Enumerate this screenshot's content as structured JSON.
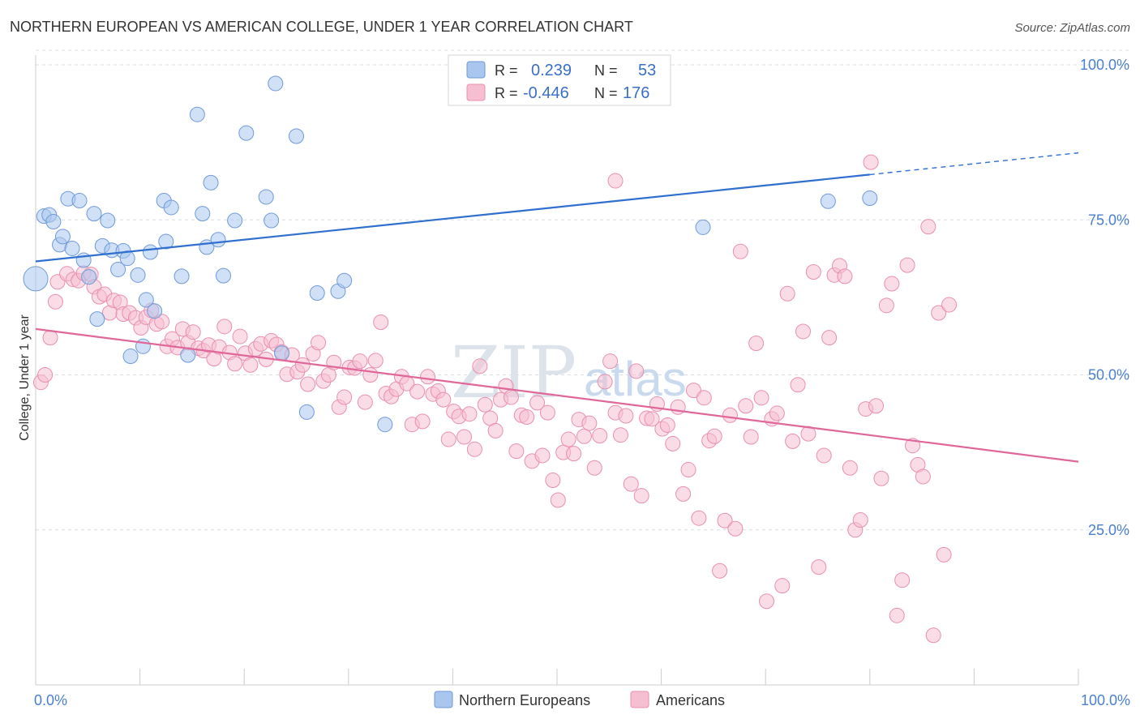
{
  "title": "NORTHERN EUROPEAN VS AMERICAN COLLEGE, UNDER 1 YEAR CORRELATION CHART",
  "source": "Source: ZipAtlas.com",
  "watermark": {
    "zip": "ZIP",
    "atlas": "atlas"
  },
  "colors": {
    "blue_fill": "#a9c6ee",
    "blue_stroke": "#6f9ad8",
    "blue_line": "#2f6fcf",
    "pink_fill": "#f6bfd1",
    "pink_stroke": "#e98fae",
    "pink_line": "#e0679a",
    "grid": "#d8dde3",
    "tick_text": "#4a7fd0"
  },
  "chart_data": {
    "type": "scatter",
    "xlabel": "",
    "ylabel": "College, Under 1 year",
    "xlim": [
      0,
      100
    ],
    "ylim": [
      0,
      100
    ],
    "x_tick_labels": [
      "0.0%",
      "100.0%"
    ],
    "y_tick_labels": [
      "25.0%",
      "50.0%",
      "75.0%",
      "100.0%"
    ],
    "y_ticks": [
      25,
      50,
      75,
      100
    ],
    "grid": "horizontal-dashed",
    "legend_position": "top-center",
    "legend": {
      "rows": [
        {
          "r_label": "R =",
          "r_value": "0.239",
          "n_label": "N =",
          "n_value": "53"
        },
        {
          "r_label": "R =",
          "r_value": "-0.446",
          "n_label": "N =",
          "n_value": "176"
        }
      ]
    },
    "bottom_legend": [
      "Northern Europeans",
      "Americans"
    ],
    "series": [
      {
        "name": "Northern Europeans",
        "trend": {
          "x": [
            0,
            80
          ],
          "y": [
            68.3,
            82.3
          ],
          "dashed_extension": {
            "x": [
              80,
              100
            ],
            "y": [
              82.3,
              85.8
            ]
          }
        },
        "points": [
          [
            0.0,
            65.5
          ],
          [
            0.8,
            75.6
          ],
          [
            1.3,
            75.8
          ],
          [
            1.7,
            74.7
          ],
          [
            2.3,
            71.0
          ],
          [
            2.6,
            72.3
          ],
          [
            3.1,
            78.4
          ],
          [
            3.5,
            70.4
          ],
          [
            4.2,
            78.1
          ],
          [
            4.6,
            68.5
          ],
          [
            5.1,
            65.8
          ],
          [
            5.6,
            76.0
          ],
          [
            5.9,
            59.0
          ],
          [
            6.4,
            70.8
          ],
          [
            6.9,
            74.9
          ],
          [
            7.3,
            70.1
          ],
          [
            7.9,
            67.0
          ],
          [
            8.4,
            70.0
          ],
          [
            8.8,
            68.8
          ],
          [
            9.1,
            53.0
          ],
          [
            9.8,
            66.1
          ],
          [
            10.3,
            54.6
          ],
          [
            10.6,
            62.1
          ],
          [
            11.0,
            69.8
          ],
          [
            11.4,
            60.3
          ],
          [
            12.3,
            78.1
          ],
          [
            12.5,
            71.5
          ],
          [
            13.0,
            77.0
          ],
          [
            14.0,
            65.9
          ],
          [
            14.6,
            53.2
          ],
          [
            15.5,
            92.0
          ],
          [
            16.0,
            76.0
          ],
          [
            16.4,
            70.6
          ],
          [
            16.8,
            81.0
          ],
          [
            17.5,
            71.8
          ],
          [
            18.0,
            66.0
          ],
          [
            19.1,
            74.9
          ],
          [
            20.2,
            89.0
          ],
          [
            22.1,
            78.7
          ],
          [
            22.6,
            74.9
          ],
          [
            23.0,
            97.0
          ],
          [
            23.6,
            53.5
          ],
          [
            25.0,
            88.5
          ],
          [
            26.0,
            44.0
          ],
          [
            27.0,
            63.2
          ],
          [
            29.0,
            63.5
          ],
          [
            29.6,
            65.2
          ],
          [
            33.5,
            42.0
          ],
          [
            41.0,
            99.8
          ],
          [
            51.0,
            99.8
          ],
          [
            76.0,
            78.0
          ],
          [
            80.0,
            78.5
          ],
          [
            64.0,
            73.8
          ]
        ]
      },
      {
        "name": "Americans",
        "trend": {
          "x": [
            0,
            100
          ],
          "y": [
            57.4,
            36.0
          ]
        },
        "points": [
          [
            0.5,
            48.8
          ],
          [
            0.9,
            50.0
          ],
          [
            1.4,
            56.0
          ],
          [
            1.9,
            61.8
          ],
          [
            2.1,
            65.0
          ],
          [
            3.0,
            66.3
          ],
          [
            3.6,
            65.4
          ],
          [
            4.1,
            65.2
          ],
          [
            4.6,
            66.4
          ],
          [
            5.3,
            66.2
          ],
          [
            5.6,
            64.2
          ],
          [
            6.1,
            62.6
          ],
          [
            6.6,
            63.0
          ],
          [
            7.1,
            60.0
          ],
          [
            7.5,
            62.0
          ],
          [
            8.1,
            61.7
          ],
          [
            8.4,
            59.8
          ],
          [
            9.0,
            60.0
          ],
          [
            9.6,
            59.2
          ],
          [
            10.1,
            57.6
          ],
          [
            10.6,
            59.3
          ],
          [
            11.1,
            60.4
          ],
          [
            11.6,
            58.2
          ],
          [
            12.1,
            58.6
          ],
          [
            12.6,
            54.6
          ],
          [
            13.1,
            55.8
          ],
          [
            13.6,
            54.4
          ],
          [
            14.1,
            57.4
          ],
          [
            14.6,
            55.2
          ],
          [
            15.1,
            56.9
          ],
          [
            15.6,
            54.3
          ],
          [
            16.1,
            53.9
          ],
          [
            16.6,
            54.8
          ],
          [
            17.1,
            52.6
          ],
          [
            17.6,
            54.5
          ],
          [
            18.1,
            57.8
          ],
          [
            18.6,
            53.6
          ],
          [
            19.1,
            51.8
          ],
          [
            19.6,
            56.2
          ],
          [
            20.1,
            53.5
          ],
          [
            20.6,
            51.6
          ],
          [
            21.1,
            54.2
          ],
          [
            21.6,
            55.0
          ],
          [
            22.1,
            52.5
          ],
          [
            22.6,
            55.5
          ],
          [
            23.1,
            54.9
          ],
          [
            23.6,
            53.7
          ],
          [
            24.1,
            50.1
          ],
          [
            24.6,
            53.2
          ],
          [
            25.1,
            50.5
          ],
          [
            25.6,
            51.6
          ],
          [
            26.1,
            48.5
          ],
          [
            26.6,
            53.4
          ],
          [
            27.1,
            55.2
          ],
          [
            27.6,
            49.0
          ],
          [
            28.1,
            50.0
          ],
          [
            28.6,
            52.0
          ],
          [
            29.1,
            44.8
          ],
          [
            29.6,
            46.4
          ],
          [
            30.1,
            51.2
          ],
          [
            30.6,
            51.1
          ],
          [
            31.1,
            52.2
          ],
          [
            31.6,
            45.6
          ],
          [
            32.1,
            50.0
          ],
          [
            32.6,
            52.3
          ],
          [
            33.1,
            58.5
          ],
          [
            33.6,
            47.0
          ],
          [
            34.1,
            46.5
          ],
          [
            34.6,
            47.7
          ],
          [
            35.1,
            49.7
          ],
          [
            35.6,
            48.6
          ],
          [
            36.1,
            42.0
          ],
          [
            36.6,
            47.3
          ],
          [
            37.1,
            42.5
          ],
          [
            37.6,
            49.7
          ],
          [
            38.1,
            46.9
          ],
          [
            38.6,
            47.4
          ],
          [
            39.1,
            46.0
          ],
          [
            39.6,
            39.6
          ],
          [
            40.1,
            44.1
          ],
          [
            40.6,
            43.3
          ],
          [
            41.1,
            40.0
          ],
          [
            41.6,
            43.7
          ],
          [
            42.1,
            38.0
          ],
          [
            42.6,
            51.4
          ],
          [
            43.1,
            45.2
          ],
          [
            43.6,
            43.0
          ],
          [
            44.1,
            41.0
          ],
          [
            44.6,
            46.0
          ],
          [
            45.1,
            48.2
          ],
          [
            45.6,
            46.4
          ],
          [
            46.1,
            37.7
          ],
          [
            46.6,
            43.5
          ],
          [
            47.1,
            43.2
          ],
          [
            47.6,
            36.1
          ],
          [
            48.1,
            45.5
          ],
          [
            48.6,
            37.0
          ],
          [
            49.1,
            43.9
          ],
          [
            49.6,
            33.0
          ],
          [
            50.1,
            29.8
          ],
          [
            50.6,
            37.5
          ],
          [
            51.1,
            39.6
          ],
          [
            51.6,
            37.3
          ],
          [
            52.1,
            42.8
          ],
          [
            52.6,
            40.1
          ],
          [
            53.1,
            42.2
          ],
          [
            53.6,
            35.0
          ],
          [
            54.1,
            40.2
          ],
          [
            54.6,
            48.9
          ],
          [
            55.1,
            52.2
          ],
          [
            55.6,
            43.9
          ],
          [
            56.1,
            40.3
          ],
          [
            56.6,
            43.4
          ],
          [
            57.1,
            32.4
          ],
          [
            57.6,
            50.6
          ],
          [
            58.1,
            30.5
          ],
          [
            58.6,
            43.0
          ],
          [
            59.1,
            42.9
          ],
          [
            59.6,
            45.3
          ],
          [
            60.1,
            41.3
          ],
          [
            60.6,
            41.9
          ],
          [
            61.1,
            38.9
          ],
          [
            61.6,
            44.8
          ],
          [
            62.1,
            30.8
          ],
          [
            62.6,
            34.7
          ],
          [
            63.1,
            47.5
          ],
          [
            63.6,
            26.9
          ],
          [
            64.1,
            46.3
          ],
          [
            64.6,
            39.4
          ],
          [
            65.1,
            40.1
          ],
          [
            65.6,
            18.4
          ],
          [
            66.1,
            26.5
          ],
          [
            66.6,
            43.5
          ],
          [
            67.1,
            25.2
          ],
          [
            67.6,
            69.9
          ],
          [
            68.1,
            45.0
          ],
          [
            68.6,
            40.0
          ],
          [
            69.1,
            55.1
          ],
          [
            69.6,
            46.3
          ],
          [
            70.1,
            13.5
          ],
          [
            70.6,
            42.9
          ],
          [
            71.1,
            43.8
          ],
          [
            71.6,
            16.0
          ],
          [
            72.1,
            63.1
          ],
          [
            72.6,
            39.3
          ],
          [
            73.1,
            48.4
          ],
          [
            73.6,
            57.0
          ],
          [
            74.1,
            40.5
          ],
          [
            74.6,
            66.6
          ],
          [
            75.1,
            19.0
          ],
          [
            75.6,
            37.0
          ],
          [
            76.1,
            56.0
          ],
          [
            76.6,
            66.1
          ],
          [
            77.1,
            67.6
          ],
          [
            77.6,
            65.9
          ],
          [
            78.1,
            35.0
          ],
          [
            78.6,
            25.0
          ],
          [
            79.1,
            26.6
          ],
          [
            79.6,
            44.5
          ],
          [
            80.1,
            84.3
          ],
          [
            80.6,
            45.0
          ],
          [
            81.1,
            33.3
          ],
          [
            81.6,
            61.2
          ],
          [
            82.1,
            64.7
          ],
          [
            82.6,
            11.2
          ],
          [
            83.1,
            16.9
          ],
          [
            83.6,
            67.7
          ],
          [
            84.1,
            38.6
          ],
          [
            84.6,
            35.5
          ],
          [
            85.1,
            33.6
          ],
          [
            85.6,
            73.9
          ],
          [
            86.1,
            8.0
          ],
          [
            86.6,
            60.0
          ],
          [
            87.1,
            21.0
          ],
          [
            87.6,
            61.3
          ],
          [
            55.6,
            81.3
          ]
        ]
      }
    ]
  }
}
